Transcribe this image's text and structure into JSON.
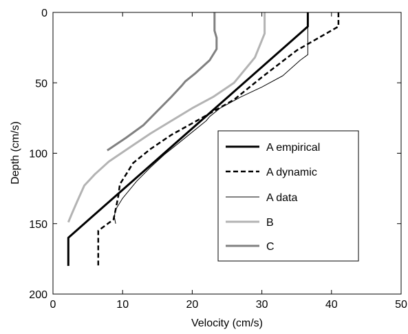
{
  "chart_data": {
    "type": "line",
    "title": "",
    "xlabel": "Velocity (cm/s)",
    "ylabel": "Depth (cm/s)",
    "xlim": [
      0,
      50
    ],
    "ylim": [
      0,
      200
    ],
    "y_inverted": true,
    "xticks": [
      0,
      10,
      20,
      30,
      40,
      50
    ],
    "yticks": [
      0,
      50,
      100,
      150,
      200
    ],
    "grid": false,
    "legend_placement": "center-right",
    "series": [
      {
        "name": "A empirical",
        "color": "#000000",
        "style": "solid-thick",
        "points": [
          [
            36.6,
            0
          ],
          [
            36.6,
            10
          ],
          [
            2.2,
            160
          ],
          [
            2.2,
            180
          ]
        ]
      },
      {
        "name": "A dynamic",
        "color": "#000000",
        "style": "dashed",
        "points": [
          [
            41,
            0
          ],
          [
            41,
            10
          ],
          [
            35,
            27
          ],
          [
            30,
            46
          ],
          [
            26,
            62
          ],
          [
            21,
            76
          ],
          [
            17,
            87
          ],
          [
            14,
            97
          ],
          [
            11.5,
            107
          ],
          [
            10.5,
            115
          ],
          [
            9.6,
            122
          ],
          [
            9.4,
            130
          ],
          [
            9,
            140
          ],
          [
            8.7,
            147
          ],
          [
            6.5,
            155
          ],
          [
            6.5,
            180
          ]
        ]
      },
      {
        "name": "A data",
        "color": "#000000",
        "style": "solid-thin",
        "points": [
          [
            36.6,
            0
          ],
          [
            36.6,
            30
          ],
          [
            35.5,
            34
          ],
          [
            33,
            45
          ],
          [
            30,
            53
          ],
          [
            27,
            60
          ],
          [
            24,
            68
          ],
          [
            22.5,
            74
          ],
          [
            22,
            77
          ],
          [
            20,
            85
          ],
          [
            18,
            93
          ],
          [
            16,
            101
          ],
          [
            14,
            110
          ],
          [
            12,
            120
          ],
          [
            10,
            132
          ],
          [
            9,
            140
          ],
          [
            8.8,
            145
          ],
          [
            9,
            150
          ]
        ]
      },
      {
        "name": "B",
        "color": "#b3b3b3",
        "style": "solid-medium",
        "points": [
          [
            30.4,
            0
          ],
          [
            30.4,
            15
          ],
          [
            29,
            32
          ],
          [
            26,
            50
          ],
          [
            23,
            60
          ],
          [
            20,
            68
          ],
          [
            17,
            77
          ],
          [
            14,
            86
          ],
          [
            11,
            96
          ],
          [
            8,
            106
          ],
          [
            6,
            115
          ],
          [
            4.5,
            123
          ],
          [
            3.5,
            134
          ],
          [
            2.8,
            142
          ],
          [
            2.2,
            149
          ]
        ]
      },
      {
        "name": "C",
        "color": "#808080",
        "style": "solid-medium",
        "points": [
          [
            23.2,
            0
          ],
          [
            23.2,
            13
          ],
          [
            23.5,
            18
          ],
          [
            23.5,
            26
          ],
          [
            22.5,
            34
          ],
          [
            20.5,
            43
          ],
          [
            19,
            49
          ],
          [
            18.5,
            52
          ],
          [
            17,
            60
          ],
          [
            15,
            70
          ],
          [
            13,
            80
          ],
          [
            10.5,
            89
          ],
          [
            7.8,
            98
          ]
        ]
      }
    ]
  }
}
